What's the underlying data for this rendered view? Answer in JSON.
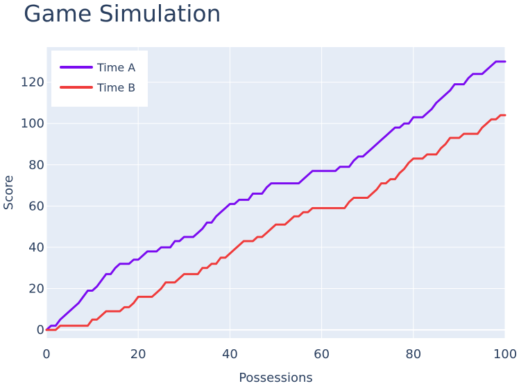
{
  "title": "Game Simulation",
  "chart_data": {
    "type": "line",
    "title": "Game Simulation",
    "xlabel": "Possessions",
    "ylabel": "Score",
    "xlim": [
      0,
      100
    ],
    "ylim": [
      -4,
      137
    ],
    "x_ticks": [
      0,
      20,
      40,
      60,
      80,
      100
    ],
    "y_ticks": [
      0,
      20,
      40,
      60,
      80,
      100,
      120
    ],
    "grid": true,
    "legend_position": "top-left",
    "colors": {
      "plot_background": "#e5ecf6",
      "grid": "#ffffff",
      "text": "#2a3f5f"
    },
    "series": [
      {
        "name": "Time A",
        "color": "#7b0bf0",
        "x": [
          0,
          1,
          2,
          3,
          4,
          5,
          6,
          7,
          8,
          9,
          10,
          11,
          12,
          13,
          14,
          15,
          16,
          17,
          18,
          19,
          20,
          21,
          22,
          23,
          24,
          25,
          26,
          27,
          28,
          29,
          30,
          31,
          32,
          33,
          34,
          35,
          36,
          37,
          38,
          39,
          40,
          41,
          42,
          43,
          44,
          45,
          46,
          47,
          48,
          49,
          50,
          51,
          52,
          53,
          54,
          55,
          56,
          57,
          58,
          59,
          60,
          61,
          62,
          63,
          64,
          65,
          66,
          67,
          68,
          69,
          70,
          71,
          72,
          73,
          74,
          75,
          76,
          77,
          78,
          79,
          80,
          81,
          82,
          83,
          84,
          85,
          86,
          87,
          88,
          89,
          90,
          91,
          92,
          93,
          94,
          95,
          96,
          97,
          98,
          99,
          100
        ],
        "values": [
          0,
          2,
          2,
          5,
          7,
          9,
          11,
          13,
          16,
          19,
          19,
          21,
          24,
          27,
          27,
          30,
          32,
          32,
          32,
          34,
          34,
          36,
          38,
          38,
          38,
          40,
          40,
          40,
          43,
          43,
          45,
          45,
          45,
          47,
          49,
          52,
          52,
          55,
          57,
          59,
          61,
          61,
          63,
          63,
          63,
          66,
          66,
          66,
          69,
          71,
          71,
          71,
          71,
          71,
          71,
          71,
          73,
          75,
          77,
          77,
          77,
          77,
          77,
          77,
          79,
          79,
          79,
          82,
          84,
          84,
          86,
          88,
          90,
          92,
          94,
          96,
          98,
          98,
          100,
          100,
          103,
          103,
          103,
          105,
          107,
          110,
          112,
          114,
          116,
          119,
          119,
          119,
          122,
          124,
          124,
          124,
          126,
          128,
          130,
          130,
          130
        ]
      },
      {
        "name": "Time B",
        "color": "#ef3b3b",
        "x": [
          0,
          1,
          2,
          3,
          4,
          5,
          6,
          7,
          8,
          9,
          10,
          11,
          12,
          13,
          14,
          15,
          16,
          17,
          18,
          19,
          20,
          21,
          22,
          23,
          24,
          25,
          26,
          27,
          28,
          29,
          30,
          31,
          32,
          33,
          34,
          35,
          36,
          37,
          38,
          39,
          40,
          41,
          42,
          43,
          44,
          45,
          46,
          47,
          48,
          49,
          50,
          51,
          52,
          53,
          54,
          55,
          56,
          57,
          58,
          59,
          60,
          61,
          62,
          63,
          64,
          65,
          66,
          67,
          68,
          69,
          70,
          71,
          72,
          73,
          74,
          75,
          76,
          77,
          78,
          79,
          80,
          81,
          82,
          83,
          84,
          85,
          86,
          87,
          88,
          89,
          90,
          91,
          92,
          93,
          94,
          95,
          96,
          97,
          98,
          99,
          100
        ],
        "values": [
          0,
          0,
          0,
          2,
          2,
          2,
          2,
          2,
          2,
          2,
          5,
          5,
          7,
          9,
          9,
          9,
          9,
          11,
          11,
          13,
          16,
          16,
          16,
          16,
          18,
          20,
          23,
          23,
          23,
          25,
          27,
          27,
          27,
          27,
          30,
          30,
          32,
          32,
          35,
          35,
          37,
          39,
          41,
          43,
          43,
          43,
          45,
          45,
          47,
          49,
          51,
          51,
          51,
          53,
          55,
          55,
          57,
          57,
          59,
          59,
          59,
          59,
          59,
          59,
          59,
          59,
          62,
          64,
          64,
          64,
          64,
          66,
          68,
          71,
          71,
          73,
          73,
          76,
          78,
          81,
          83,
          83,
          83,
          85,
          85,
          85,
          88,
          90,
          93,
          93,
          93,
          95,
          95,
          95,
          95,
          98,
          100,
          102,
          102,
          104,
          104
        ]
      }
    ]
  }
}
